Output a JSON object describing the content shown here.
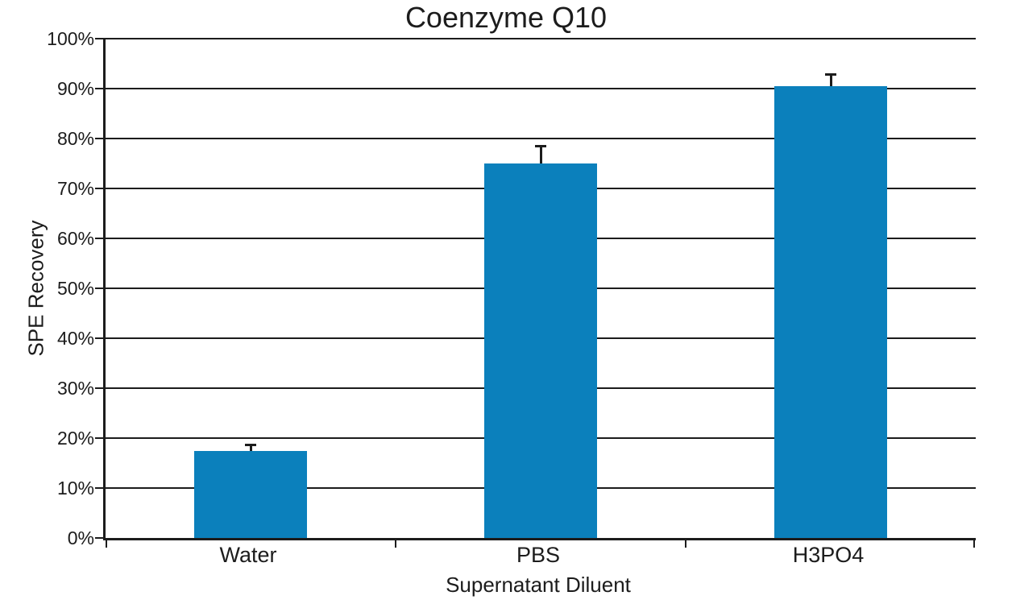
{
  "chart_data": {
    "type": "bar",
    "title": "Coenzyme Q10",
    "xlabel": "Supernatant Diluent",
    "ylabel": "SPE Recovery",
    "categories": [
      "Water",
      "PBS",
      "H3PO4"
    ],
    "values": [
      17.4,
      75.0,
      90.5
    ],
    "error_up": [
      1.2,
      3.5,
      2.3
    ],
    "ylim": [
      0,
      100
    ],
    "ytick_step": 10,
    "ytick_suffix": "%",
    "grid": true,
    "legend": "none",
    "colors": {
      "bar": "#0b80bc",
      "axis": "#1c1c1c",
      "grid": "#1c1c1c",
      "text": "#1c1c1c",
      "background": "#ffffff"
    }
  }
}
